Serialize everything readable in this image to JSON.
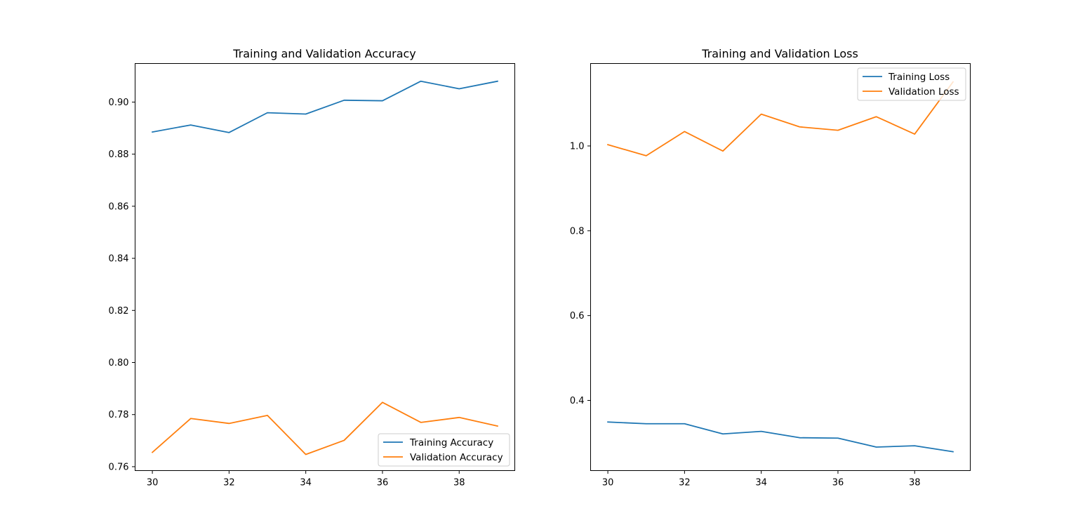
{
  "chart_data": [
    {
      "type": "line",
      "title": "Training and Validation Accuracy",
      "xlabel": "",
      "ylabel": "",
      "xlim": [
        29.55,
        39.45
      ],
      "ylim": [
        0.7585,
        0.9148
      ],
      "x": [
        30,
        31,
        32,
        33,
        34,
        35,
        36,
        37,
        38,
        39
      ],
      "xticks": [
        30,
        32,
        34,
        36,
        38
      ],
      "xtick_labels": [
        "30",
        "32",
        "34",
        "36",
        "38"
      ],
      "yticks": [
        0.76,
        0.78,
        0.8,
        0.82,
        0.84,
        0.86,
        0.88,
        0.9
      ],
      "ytick_labels": [
        "0.76",
        "0.78",
        "0.80",
        "0.82",
        "0.84",
        "0.86",
        "0.88",
        "0.90"
      ],
      "legend_position": "lower right",
      "grid": false,
      "series": [
        {
          "name": "Training Accuracy",
          "color": "#1f77b4",
          "values": [
            0.8885,
            0.8912,
            0.8883,
            0.8959,
            0.8954,
            0.9007,
            0.9005,
            0.908,
            0.9051,
            0.908
          ]
        },
        {
          "name": "Validation Accuracy",
          "color": "#ff7f0e",
          "values": [
            0.7655,
            0.7785,
            0.7766,
            0.7797,
            0.7647,
            0.7701,
            0.7847,
            0.777,
            0.7789,
            0.7756
          ]
        }
      ]
    },
    {
      "type": "line",
      "title": "Training and Validation Loss",
      "xlabel": "",
      "ylabel": "",
      "xlim": [
        29.55,
        39.45
      ],
      "ylim": [
        0.2345,
        1.1944
      ],
      "x": [
        30,
        31,
        32,
        33,
        34,
        35,
        36,
        37,
        38,
        39
      ],
      "xticks": [
        30,
        32,
        34,
        36,
        38
      ],
      "xtick_labels": [
        "30",
        "32",
        "34",
        "36",
        "38"
      ],
      "yticks": [
        0.4,
        0.6,
        0.8,
        1.0
      ],
      "ytick_labels": [
        "0.4",
        "0.6",
        "0.8",
        "1.0"
      ],
      "legend_position": "upper right",
      "grid": false,
      "series": [
        {
          "name": "Training Loss",
          "color": "#1f77b4",
          "values": [
            0.349,
            0.345,
            0.345,
            0.321,
            0.327,
            0.312,
            0.311,
            0.29,
            0.293,
            0.279
          ]
        },
        {
          "name": "Validation Loss",
          "color": "#ff7f0e",
          "values": [
            1.003,
            0.977,
            1.034,
            0.988,
            1.075,
            1.045,
            1.037,
            1.069,
            1.028,
            1.151
          ]
        }
      ]
    }
  ]
}
